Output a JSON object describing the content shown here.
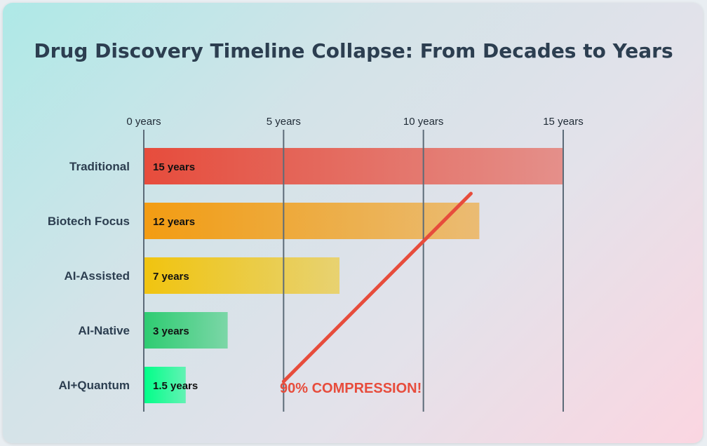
{
  "chart_data": {
    "type": "bar",
    "orientation": "horizontal",
    "title": "Drug Discovery Timeline Collapse: From Decades to Years",
    "categories": [
      "Traditional",
      "Biotech Focus",
      "AI-Assisted",
      "AI-Native",
      "AI+Quantum"
    ],
    "values": [
      15,
      12,
      7,
      3,
      1.5
    ],
    "value_labels": [
      "15 years",
      "12 years",
      "7 years",
      "3 years",
      "1.5 years"
    ],
    "bar_colors": [
      "#e74c3c",
      "#f39c12",
      "#f1c40f",
      "#2ecc71",
      "#00ff88"
    ],
    "x_ticks": [
      0,
      5,
      10,
      15
    ],
    "x_tick_labels": [
      "0 years",
      "5 years",
      "10 years",
      "15 years"
    ],
    "xlim": [
      0,
      15
    ],
    "grid": true,
    "annotation": {
      "text": "90% COMPRESSION!",
      "color": "#e74c3c",
      "line_from": {
        "x": 5,
        "category": "AI+Quantum"
      },
      "line_to": {
        "x": 11.7,
        "category": "Traditional"
      }
    }
  }
}
